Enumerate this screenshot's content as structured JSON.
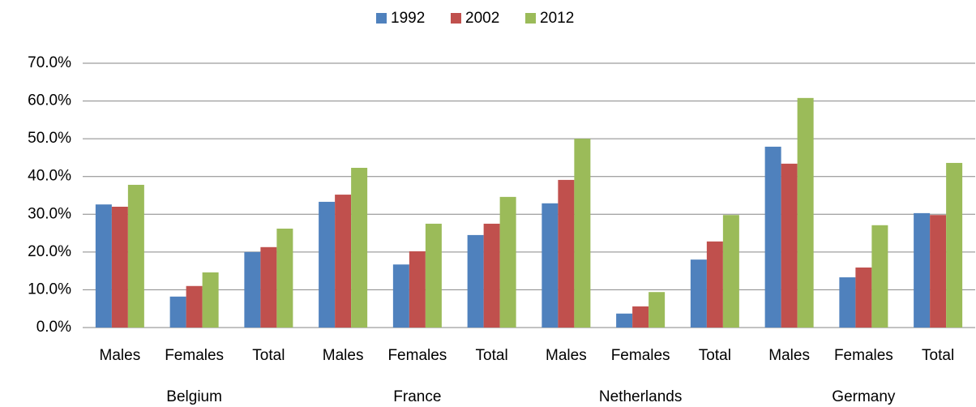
{
  "chart_data": {
    "type": "bar",
    "categories": [
      "Males",
      "Females",
      "Total",
      "Males",
      "Females",
      "Total",
      "Males",
      "Females",
      "Total",
      "Males",
      "Females",
      "Total"
    ],
    "groups": [
      "Belgium",
      "France",
      "Netherlands",
      "Germany"
    ],
    "series": [
      {
        "name": "1992",
        "color": "#4f81bd",
        "values": [
          32.6,
          8.2,
          20.0,
          33.3,
          16.7,
          24.5,
          32.9,
          3.7,
          18.0,
          47.9,
          13.3,
          30.3
        ]
      },
      {
        "name": "2002",
        "color": "#c0504d",
        "values": [
          32.0,
          11.0,
          21.3,
          35.2,
          20.2,
          27.5,
          39.1,
          5.6,
          22.8,
          43.4,
          15.9,
          29.8
        ]
      },
      {
        "name": "2012",
        "color": "#9bbb59",
        "values": [
          37.8,
          14.6,
          26.2,
          42.3,
          27.5,
          34.6,
          50.0,
          9.4,
          29.8,
          60.8,
          27.1,
          43.6
        ]
      }
    ],
    "ylim": [
      0,
      70
    ],
    "yticks": [
      {
        "value": 0,
        "label": "0.0%"
      },
      {
        "value": 10,
        "label": "10.0%"
      },
      {
        "value": 20,
        "label": "20.0%"
      },
      {
        "value": 30,
        "label": "30.0%"
      },
      {
        "value": 40,
        "label": "40.0%"
      },
      {
        "value": 50,
        "label": "50.0%"
      },
      {
        "value": 60,
        "label": "60.0%"
      },
      {
        "value": 70,
        "label": "70.0%"
      }
    ],
    "grid": true,
    "legend": "top"
  }
}
